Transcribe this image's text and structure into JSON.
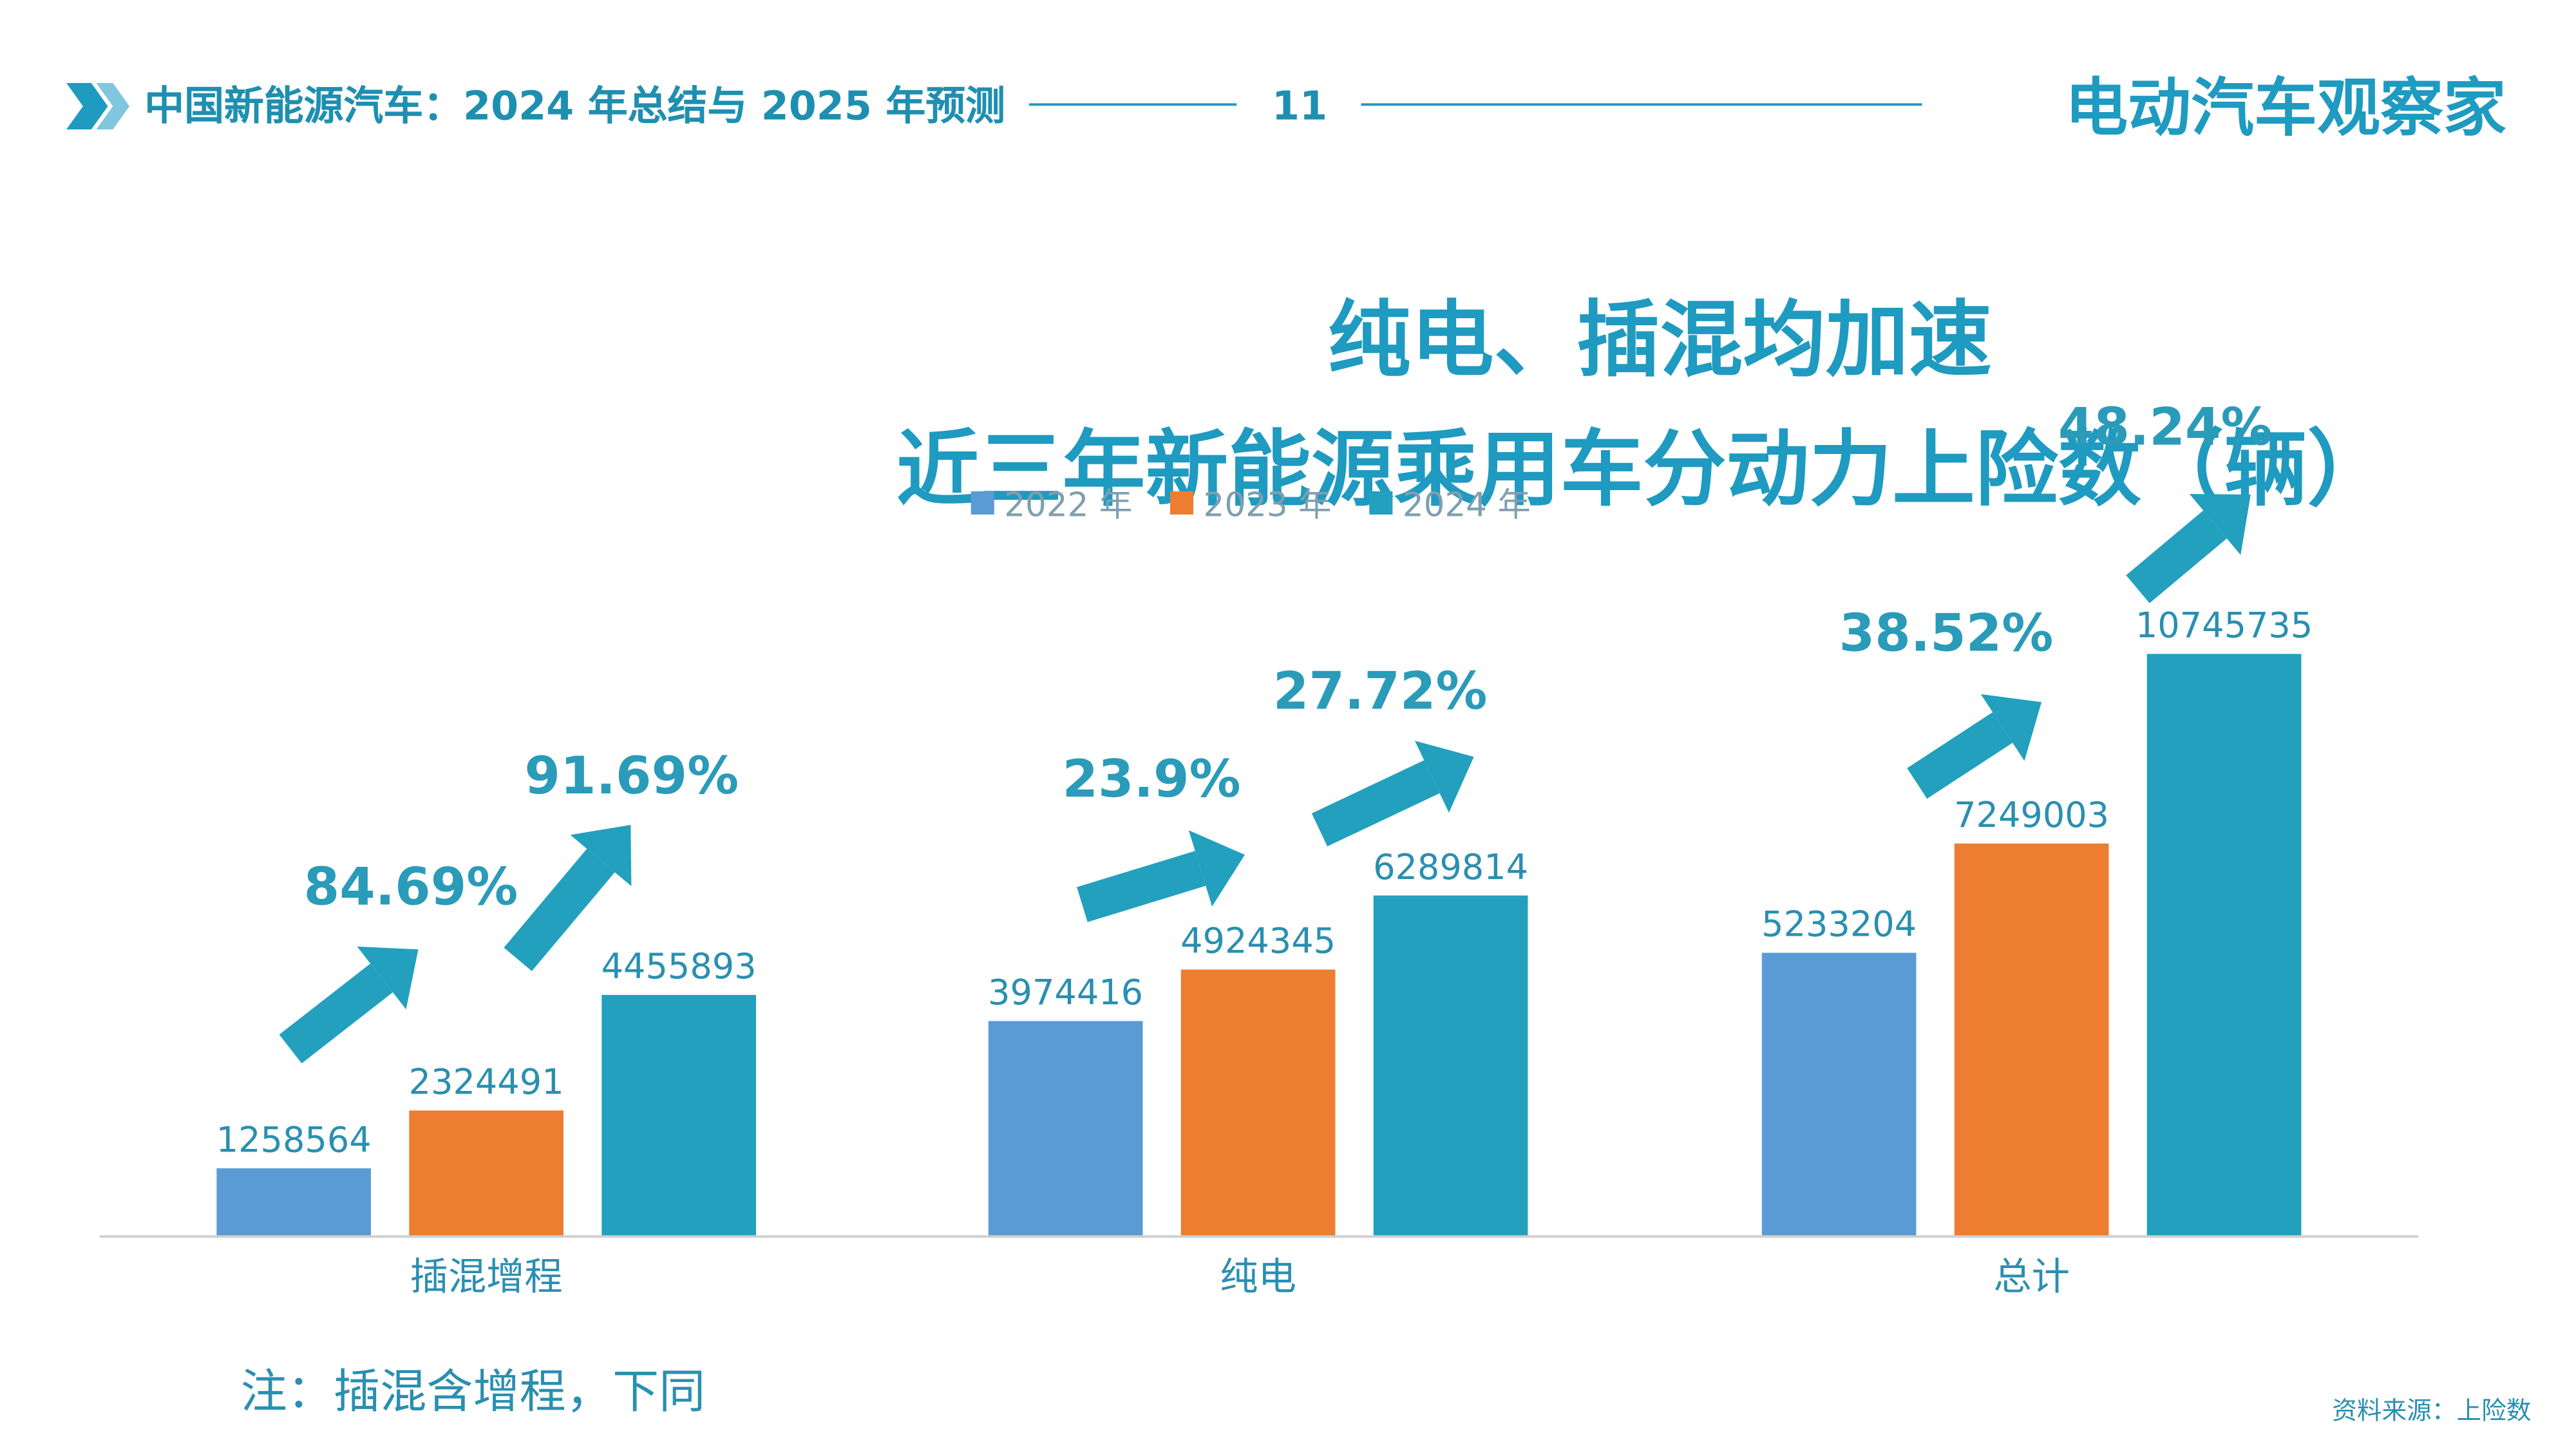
{
  "header": {
    "title": "中国新能源汽车：2024 年总结与 2025 年预测",
    "page": "11",
    "logo": "电动汽车观察家"
  },
  "chart_data": {
    "type": "bar",
    "title": "纯电、插混均加速",
    "subtitle": "近三年新能源乘用车分动力上险数（辆）",
    "categories": [
      "插混增程",
      "纯电",
      "总计"
    ],
    "series": [
      {
        "name": "2022 年",
        "color": "#5b9bd5",
        "values": [
          1258564,
          3974416,
          5233204
        ]
      },
      {
        "name": "2023 年",
        "color": "#ed7d31",
        "values": [
          2324491,
          4924345,
          7249003
        ]
      },
      {
        "name": "2024 年",
        "color": "#22a0be",
        "values": [
          4455893,
          6289814,
          10745735
        ]
      }
    ],
    "ylim": [
      0,
      12000000
    ],
    "annotations": [
      "84.69%",
      "91.69%",
      "23.9%",
      "27.72%",
      "38.52%",
      "48.24%"
    ],
    "note": "注：插混含增程，下同",
    "source": "资料来源：上险数"
  }
}
